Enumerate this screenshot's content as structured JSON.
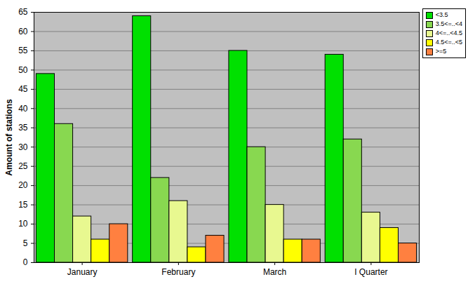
{
  "chart_data": {
    "type": "bar",
    "categories": [
      "January",
      "February",
      "March",
      "I Quarter"
    ],
    "series": [
      {
        "name": "<3.5",
        "color": "#00e000",
        "values": [
          49,
          64,
          55,
          54
        ]
      },
      {
        "name": "3.5<=..<4",
        "color": "#88d850",
        "values": [
          36,
          22,
          30,
          32
        ]
      },
      {
        "name": "4<=..<4.5",
        "color": "#e8f890",
        "values": [
          12,
          16,
          15,
          13
        ]
      },
      {
        "name": "4.5<=..<5",
        "color": "#ffff00",
        "values": [
          6,
          4,
          6,
          9
        ]
      },
      {
        "name": ">=5",
        "color": "#ff8040",
        "values": [
          10,
          7,
          6,
          5
        ]
      }
    ],
    "y_label": "Amount of stations",
    "ylim": [
      0,
      65
    ],
    "yticks": [
      0,
      5,
      10,
      15,
      20,
      25,
      30,
      35,
      40,
      45,
      50,
      55,
      60,
      65
    ],
    "grid": true,
    "legend": "top-right"
  }
}
